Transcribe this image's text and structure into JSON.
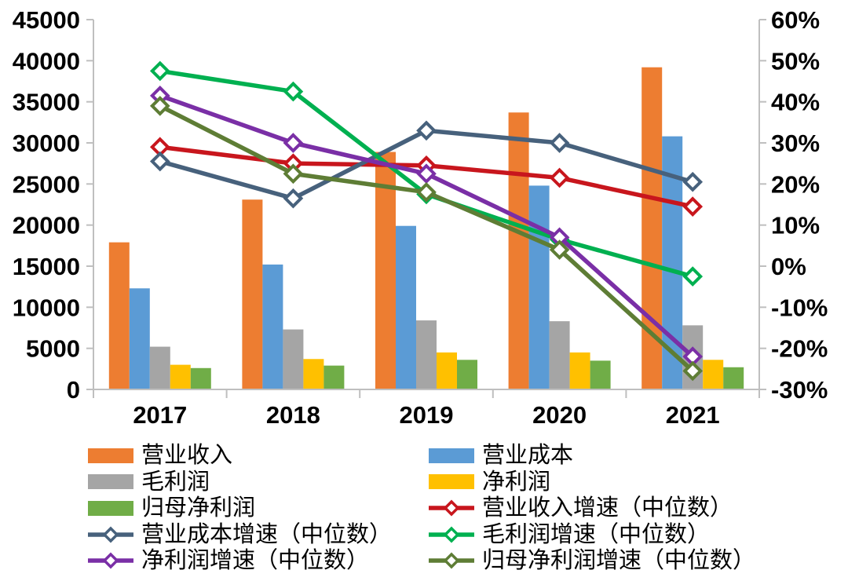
{
  "page": {
    "background": "#FFFFFF"
  },
  "chart_data": {
    "type": "combo",
    "subtype": "grouped-bars-with-lines",
    "categories": [
      "2017",
      "2018",
      "2019",
      "2020",
      "2021"
    ],
    "bar_series": [
      {
        "name": "营业收入",
        "color": "#ED7D31",
        "values": [
          17900,
          23100,
          28900,
          33700,
          39200
        ]
      },
      {
        "name": "营业成本",
        "color": "#5B9BD5",
        "values": [
          12300,
          15200,
          19900,
          24800,
          30800
        ]
      },
      {
        "name": "毛利润",
        "color": "#A5A5A5",
        "values": [
          5200,
          7300,
          8400,
          8300,
          7800
        ]
      },
      {
        "name": "净利润",
        "color": "#FFC000",
        "values": [
          3000,
          3700,
          4500,
          4500,
          3600
        ]
      },
      {
        "name": "归母净利润",
        "color": "#70AD47",
        "values": [
          2600,
          2900,
          3600,
          3500,
          2700
        ]
      }
    ],
    "line_series": [
      {
        "name": "营业收入增速（中位数）",
        "color": "#C8161D",
        "values": [
          29,
          25,
          24.5,
          21.5,
          14.5
        ]
      },
      {
        "name": "营业成本增速（中位数）",
        "color": "#47617C",
        "values": [
          25.5,
          16.5,
          33,
          30,
          20.5
        ]
      },
      {
        "name": "毛利润增速（中位数）",
        "color": "#00B050",
        "values": [
          47.5,
          42.5,
          17.5,
          6.5,
          -2.5
        ]
      },
      {
        "name": "净利润增速（中位数）",
        "color": "#7A2FA6",
        "values": [
          41.5,
          30,
          22.5,
          7,
          -22
        ]
      },
      {
        "name": "归母净利润增速（中位数）",
        "color": "#5E7D35",
        "values": [
          39,
          22.5,
          18,
          4,
          -25.5
        ]
      }
    ],
    "left_axis": {
      "min": 0,
      "max": 45000,
      "step": 5000,
      "labels": [
        "0",
        "5000",
        "10000",
        "15000",
        "20000",
        "25000",
        "30000",
        "35000",
        "40000",
        "45000"
      ]
    },
    "right_axis": {
      "min": -30,
      "max": 60,
      "step": 10,
      "format": "percent",
      "labels": [
        "-30%",
        "-20%",
        "-10%",
        "0%",
        "10%",
        "20%",
        "30%",
        "40%",
        "50%",
        "60%"
      ]
    },
    "grid": false,
    "legend_position": "bottom",
    "axis_color": "#BFBFBF",
    "text_color": "#000000",
    "marker": "hollow-diamond",
    "title": ""
  }
}
